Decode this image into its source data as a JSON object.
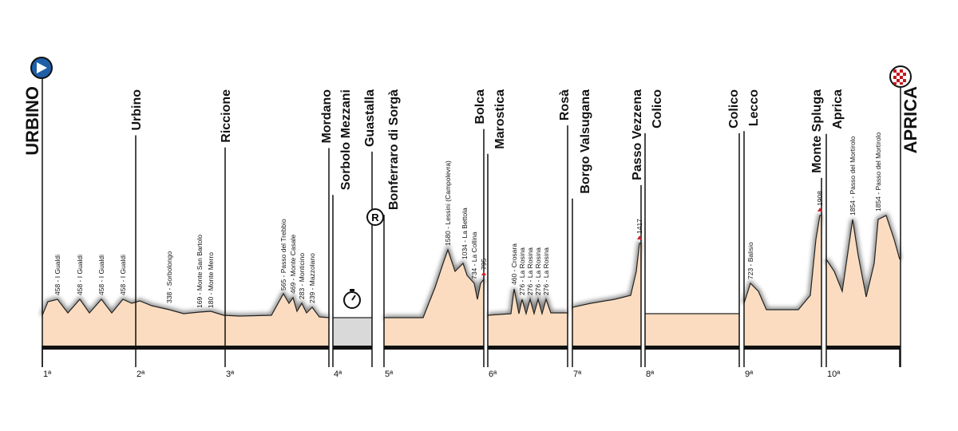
{
  "start": "URBINO",
  "finish": "APRICA",
  "marker": "R",
  "places": [
    "Urbino",
    "Riccione",
    "Mordano",
    "Sorbolo Mezzani",
    "Guastalla",
    "Bonferraro di Sorgà",
    "Bolca",
    "Marostica",
    "Rosà",
    "Borgo Valsugana",
    "Passo Vezzena",
    "Colico",
    "Colico",
    "Lecco",
    "Monte Spluga",
    "Aprica"
  ],
  "stages": [
    "1ª",
    "2ª",
    "3ª",
    "4ª",
    "5ª",
    "6ª",
    "7ª",
    "8ª",
    "9ª",
    "10ª"
  ],
  "climbs": [
    "458 - I Gualdi",
    "458 - I Gualdi",
    "458 - I Gualdi",
    "458 - I Gualdi",
    "338 - Sorbolongo",
    "169 - Monte San Bartolo",
    "180 - Monte Merro",
    "565 - Passo del Trebbio",
    "469 - Monte Casale",
    "283 - Monticino",
    "239 - Mazzolano",
    "1580 - Lessini (Campolevra)",
    "1034 - La Bettola",
    "734 - La Collina",
    "795",
    "460 - Crosara",
    "276 - La Rosina",
    "276 - La Rosina",
    "276 - La Rosina",
    "276 - La Rosina",
    "1417",
    "723 - Balisio",
    "1908",
    "1854 - Passo del Mortirolo",
    "1854 - Passo del Mortirolo"
  ]
}
